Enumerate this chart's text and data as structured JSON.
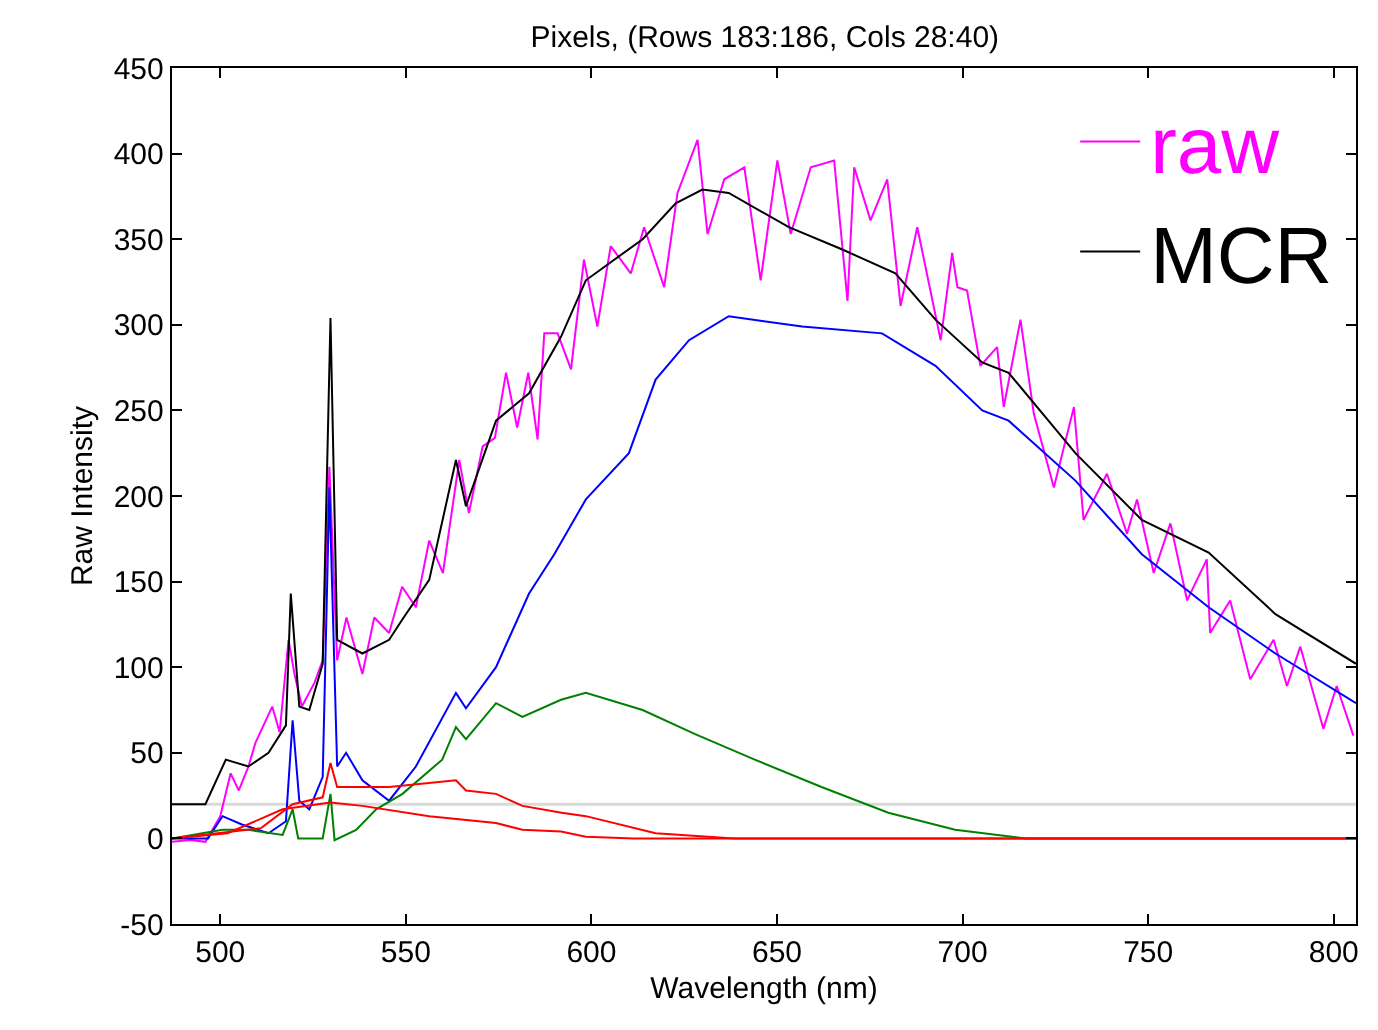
{
  "chart_data": {
    "type": "line",
    "title": "Pixels, (Rows 183:186, Cols 28:40)",
    "xlabel": "Wavelength (nm)",
    "ylabel": "Raw Intensity",
    "xlim": [
      487,
      806
    ],
    "xticks": [
      500,
      550,
      600,
      650,
      700,
      750,
      800
    ],
    "ylim": [
      -50,
      450
    ],
    "yticks": [
      -50,
      0,
      50,
      100,
      150,
      200,
      250,
      300,
      350,
      400,
      450
    ],
    "grid": false,
    "legend": "top right",
    "line_style": "solid",
    "marker": "none",
    "ref_lines": [
      {
        "axis": "y",
        "value": 20,
        "color": "#d9d9d9"
      }
    ],
    "series": [
      {
        "name": "raw",
        "color": "#ff00ff",
        "x": [
          487,
          492,
          496,
          500,
          502.8,
          505,
          507.6,
          509.5,
          514,
          516,
          518.4,
          520,
          522,
          525.4,
          527.6,
          529.4,
          531.5,
          534,
          538.3,
          541.5,
          545.5,
          549,
          552.7,
          556.3,
          560,
          564.4,
          567,
          570.7,
          574,
          577,
          580,
          583,
          585.5,
          587.3,
          590.9,
          594.5,
          598,
          601.6,
          605.2,
          610.6,
          614.2,
          619.6,
          623.2,
          628.6,
          631.3,
          635.8,
          641.2,
          645.6,
          650.1,
          653.7,
          659.1,
          665.4,
          669,
          670.8,
          675.2,
          679.7,
          683.3,
          687.8,
          694.1,
          697.2,
          698.6,
          701.2,
          704.8,
          709.3,
          711.1,
          715.6,
          719.2,
          724.6,
          730,
          732.6,
          738.9,
          744.3,
          747,
          751.5,
          756,
          760.5,
          765.8,
          766.7,
          772.1,
          777.5,
          783.8,
          787.4,
          791,
          797.2,
          800.8,
          805.3
        ],
        "values": [
          -2,
          -1,
          -2,
          13,
          38,
          28,
          42,
          56,
          77,
          62,
          116,
          96,
          77,
          91,
          104,
          217,
          104,
          129,
          96,
          129,
          120,
          147,
          135,
          174,
          155,
          221,
          190,
          229,
          234,
          272,
          240,
          272,
          233,
          295,
          295,
          274,
          338,
          299,
          346,
          330,
          357,
          322,
          377,
          408,
          353,
          385,
          392,
          326,
          396,
          353,
          392,
          396,
          314,
          392,
          361,
          385,
          311,
          357,
          291,
          342,
          322,
          320,
          276,
          287,
          252,
          303,
          248,
          205,
          252,
          186,
          213,
          178,
          198,
          155,
          184,
          139,
          163,
          120,
          139,
          93,
          116,
          89,
          112,
          64,
          89,
          60
        ]
      },
      {
        "name": "MCR",
        "color": "#000000",
        "x": [
          487,
          496,
          501.5,
          507.6,
          513,
          517.7,
          519,
          521.3,
          524,
          527.6,
          529.7,
          531.5,
          538.3,
          545.5,
          549.1,
          556.3,
          563.5,
          566.2,
          574.3,
          583.2,
          591.8,
          598.5,
          613.8,
          622.7,
          629.9,
          637,
          653.2,
          667.6,
          681.9,
          692.7,
          705.3,
          712.4,
          730.4,
          748.3,
          766.3,
          784.3,
          806
        ],
        "values": [
          20,
          20,
          46,
          42,
          50,
          66,
          143,
          77,
          75,
          102,
          304,
          116,
          108,
          116,
          128,
          151,
          221,
          194,
          244,
          260,
          293,
          326,
          350,
          371,
          379,
          377,
          357,
          344,
          330,
          303,
          278,
          272,
          225,
          186,
          167,
          131,
          102
        ]
      },
      {
        "color": "#0000ff",
        "x": [
          487,
          496.7,
          500.6,
          506,
          513,
          517.7,
          519.5,
          521.3,
          524,
          527.6,
          529.4,
          531.5,
          533.9,
          538.3,
          545.5,
          552.7,
          563.5,
          566.2,
          574.3,
          583.2,
          590,
          598.5,
          610.1,
          617.3,
          626.3,
          637,
          656.8,
          678.3,
          692.7,
          705.3,
          712.4,
          730.4,
          748.3,
          766.3,
          784.3,
          806
        ],
        "values": [
          0,
          0,
          13,
          8,
          3,
          10,
          69,
          22,
          17,
          36,
          205,
          42,
          50,
          34,
          22,
          42,
          85,
          76,
          100,
          143,
          166,
          198,
          225,
          268,
          291,
          305,
          299,
          295,
          276,
          250,
          244,
          209,
          166,
          135,
          108,
          79
        ]
      },
      {
        "color": "#008000",
        "x": [
          487,
          500.6,
          507.6,
          516.8,
          519.5,
          521,
          527.6,
          529.7,
          530.8,
          536.6,
          542,
          549.1,
          559.8,
          563.5,
          566.2,
          574.3,
          581.4,
          591.8,
          598.5,
          613.8,
          627.8,
          644,
          662,
          680,
          698,
          717,
          806
        ],
        "values": [
          0,
          5,
          5,
          2,
          17,
          0,
          0,
          26,
          -1,
          5,
          17,
          26,
          46,
          65,
          58,
          79,
          71,
          81,
          85,
          75,
          61,
          46,
          30,
          15,
          5,
          0,
          0
        ]
      },
      {
        "color": "#ff0000",
        "x": [
          487,
          511,
          519.5,
          527.6,
          529.7,
          531.5,
          545.5,
          563.5,
          566.2,
          574.3,
          581.4,
          592,
          598.5,
          617.3,
          638.5,
          806
        ],
        "values": [
          0,
          6,
          20,
          24,
          44,
          30,
          30,
          34,
          28,
          26,
          19,
          15,
          13,
          3,
          0,
          0
        ]
      },
      {
        "color": "#ff0000",
        "x": [
          487,
          502,
          516.8,
          529.7,
          538.3,
          556.3,
          574.3,
          581.4,
          591.8,
          598.5,
          611.5,
          806
        ],
        "values": [
          0,
          3,
          17,
          21,
          19,
          13,
          9,
          5,
          4,
          1,
          0,
          0
        ]
      }
    ]
  }
}
